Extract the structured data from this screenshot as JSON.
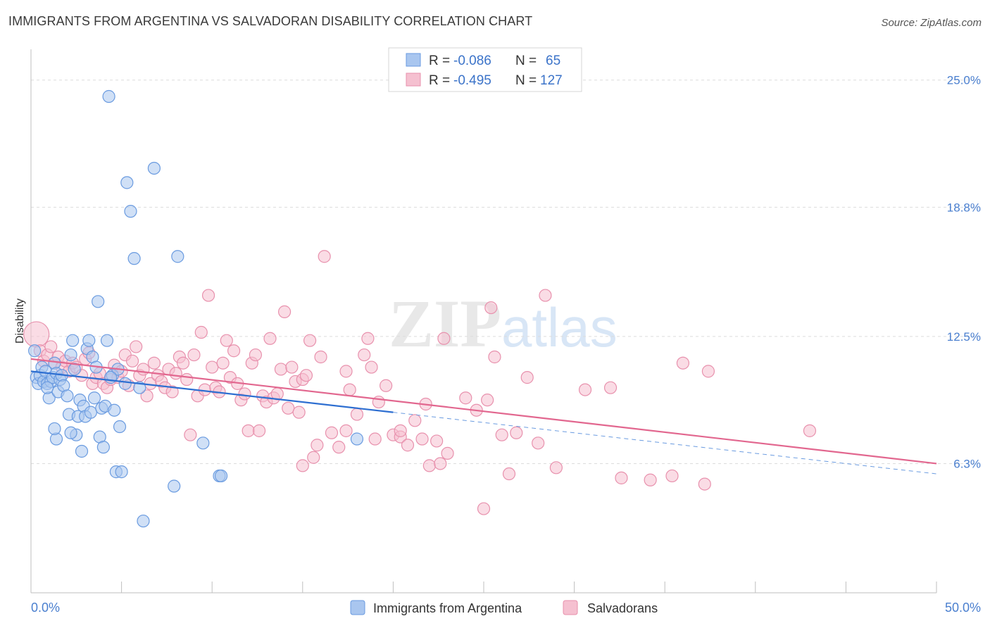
{
  "title": "IMMIGRANTS FROM ARGENTINA VS SALVADORAN DISABILITY CORRELATION CHART",
  "source": "Source: ZipAtlas.com",
  "watermark": {
    "zip": "ZIP",
    "atlas": "atlas"
  },
  "colors": {
    "blue_fill": "#a9c6ef",
    "blue_stroke": "#6a9be0",
    "blue_line": "#2e6fd1",
    "pink_fill": "#f5c0d0",
    "pink_stroke": "#e891ad",
    "pink_line": "#e2678f",
    "grid": "#dcdcdc",
    "axis_text": "#4a7fcf"
  },
  "legend_top": [
    {
      "r_label": "R =",
      "r_value": "-0.086",
      "n_label": "N =",
      "n_value": "65"
    },
    {
      "r_label": "R =",
      "r_value": "-0.495",
      "n_label": "N =",
      "n_value": "127"
    }
  ],
  "legend_bottom": [
    "Immigrants from Argentina",
    "Salvadorans"
  ],
  "chart_data": {
    "type": "scatter",
    "title": "IMMIGRANTS FROM ARGENTINA VS SALVADORAN DISABILITY CORRELATION CHART",
    "xlabel": "",
    "ylabel": "Disability",
    "xlim": [
      0,
      50
    ],
    "ylim": [
      0,
      26.5
    ],
    "x_tick_labels": [
      "0.0%",
      "50.0%"
    ],
    "y_ticks": [
      6.3,
      12.5,
      18.8,
      25.0
    ],
    "y_tick_labels": [
      "6.3%",
      "12.5%",
      "18.8%",
      "25.0%"
    ],
    "grid": true,
    "legend_position": "top-center",
    "series": [
      {
        "name": "Immigrants from Argentina",
        "color": "#a9c6ef",
        "R": -0.086,
        "N": 65,
        "trend": {
          "x0": 0,
          "y0": 10.8,
          "x1": 20,
          "y1": 8.8,
          "dashed_to_x": 50,
          "dashed_to_y": 5.8
        },
        "points": [
          [
            0.2,
            11.8
          ],
          [
            0.3,
            10.5
          ],
          [
            0.4,
            10.2
          ],
          [
            0.5,
            10.6
          ],
          [
            0.6,
            11.0
          ],
          [
            0.7,
            10.3
          ],
          [
            0.8,
            10.8
          ],
          [
            0.9,
            10.2
          ],
          [
            1.0,
            9.5
          ],
          [
            1.1,
            10.3
          ],
          [
            1.2,
            10.5
          ],
          [
            1.3,
            11.2
          ],
          [
            1.4,
            10.7
          ],
          [
            1.5,
            9.8
          ],
          [
            1.6,
            10.4
          ],
          [
            1.7,
            10.6
          ],
          [
            1.8,
            10.1
          ],
          [
            2.0,
            9.6
          ],
          [
            2.1,
            8.7
          ],
          [
            2.2,
            11.6
          ],
          [
            2.3,
            12.3
          ],
          [
            2.4,
            10.9
          ],
          [
            2.5,
            7.7
          ],
          [
            2.6,
            8.6
          ],
          [
            2.7,
            9.4
          ],
          [
            2.8,
            6.9
          ],
          [
            2.9,
            9.1
          ],
          [
            3.0,
            8.6
          ],
          [
            3.1,
            11.9
          ],
          [
            3.2,
            12.3
          ],
          [
            3.3,
            8.8
          ],
          [
            3.4,
            11.5
          ],
          [
            3.5,
            9.5
          ],
          [
            3.6,
            11.0
          ],
          [
            3.7,
            14.2
          ],
          [
            3.8,
            7.6
          ],
          [
            3.9,
            9.0
          ],
          [
            4.0,
            7.1
          ],
          [
            4.1,
            9.1
          ],
          [
            4.2,
            12.3
          ],
          [
            4.3,
            24.2
          ],
          [
            4.5,
            10.6
          ],
          [
            4.6,
            8.9
          ],
          [
            4.7,
            5.9
          ],
          [
            4.8,
            10.9
          ],
          [
            4.9,
            8.1
          ],
          [
            5.0,
            5.9
          ],
          [
            5.2,
            10.2
          ],
          [
            5.3,
            20.0
          ],
          [
            5.5,
            18.6
          ],
          [
            5.7,
            16.3
          ],
          [
            6.0,
            10.0
          ],
          [
            6.2,
            3.5
          ],
          [
            6.8,
            20.7
          ],
          [
            7.9,
            5.2
          ],
          [
            8.1,
            16.4
          ],
          [
            9.5,
            7.3
          ],
          [
            10.4,
            5.7
          ],
          [
            10.5,
            5.7
          ],
          [
            18.0,
            7.5
          ],
          [
            1.4,
            7.5
          ],
          [
            2.2,
            7.8
          ],
          [
            1.3,
            8.0
          ],
          [
            4.4,
            10.5
          ],
          [
            0.9,
            10.0
          ]
        ]
      },
      {
        "name": "Salvadorans",
        "color": "#f5c0d0",
        "R": -0.495,
        "N": 127,
        "trend": {
          "x0": 0,
          "y0": 11.4,
          "x1": 50,
          "y1": 6.3
        },
        "points": [
          [
            0.3,
            12.6
          ],
          [
            0.5,
            11.8
          ],
          [
            0.7,
            11.3
          ],
          [
            0.9,
            11.6
          ],
          [
            1.1,
            12.0
          ],
          [
            1.3,
            11.2
          ],
          [
            1.5,
            11.5
          ],
          [
            1.7,
            11.0
          ],
          [
            1.9,
            11.3
          ],
          [
            2.1,
            10.8
          ],
          [
            2.3,
            11.2
          ],
          [
            2.5,
            11.0
          ],
          [
            2.8,
            10.6
          ],
          [
            3.0,
            11.4
          ],
          [
            3.2,
            11.7
          ],
          [
            3.4,
            10.2
          ],
          [
            3.6,
            10.5
          ],
          [
            3.8,
            10.7
          ],
          [
            4.0,
            10.2
          ],
          [
            4.2,
            10.0
          ],
          [
            4.4,
            10.4
          ],
          [
            4.6,
            11.1
          ],
          [
            4.8,
            10.5
          ],
          [
            5.0,
            10.8
          ],
          [
            5.2,
            11.6
          ],
          [
            5.4,
            10.1
          ],
          [
            5.6,
            11.3
          ],
          [
            5.8,
            12.0
          ],
          [
            6.0,
            10.6
          ],
          [
            6.2,
            10.9
          ],
          [
            6.4,
            9.6
          ],
          [
            6.6,
            10.2
          ],
          [
            6.8,
            11.2
          ],
          [
            7.0,
            10.6
          ],
          [
            7.2,
            10.3
          ],
          [
            7.4,
            10.0
          ],
          [
            7.6,
            10.9
          ],
          [
            7.8,
            9.8
          ],
          [
            8.0,
            10.7
          ],
          [
            8.2,
            11.5
          ],
          [
            8.4,
            11.2
          ],
          [
            8.6,
            10.4
          ],
          [
            8.8,
            7.7
          ],
          [
            9.0,
            11.6
          ],
          [
            9.2,
            9.6
          ],
          [
            9.4,
            12.7
          ],
          [
            9.6,
            9.9
          ],
          [
            9.8,
            14.5
          ],
          [
            10.0,
            11.0
          ],
          [
            10.2,
            10.0
          ],
          [
            10.4,
            9.8
          ],
          [
            10.6,
            11.2
          ],
          [
            10.8,
            12.3
          ],
          [
            11.0,
            10.5
          ],
          [
            11.2,
            11.8
          ],
          [
            11.4,
            10.2
          ],
          [
            11.6,
            9.4
          ],
          [
            11.8,
            9.7
          ],
          [
            12.0,
            7.9
          ],
          [
            12.2,
            11.2
          ],
          [
            12.4,
            11.6
          ],
          [
            12.6,
            7.9
          ],
          [
            12.8,
            9.6
          ],
          [
            13.0,
            9.3
          ],
          [
            13.2,
            12.4
          ],
          [
            13.4,
            9.5
          ],
          [
            13.6,
            9.7
          ],
          [
            13.8,
            10.9
          ],
          [
            14.0,
            13.7
          ],
          [
            14.2,
            9.0
          ],
          [
            14.4,
            11.0
          ],
          [
            14.6,
            10.3
          ],
          [
            14.8,
            8.8
          ],
          [
            15.0,
            10.4
          ],
          [
            15.2,
            10.6
          ],
          [
            15.4,
            12.3
          ],
          [
            15.6,
            6.6
          ],
          [
            15.8,
            7.2
          ],
          [
            16.0,
            11.5
          ],
          [
            16.2,
            16.4
          ],
          [
            16.6,
            7.8
          ],
          [
            17.0,
            7.1
          ],
          [
            17.4,
            10.8
          ],
          [
            17.6,
            9.9
          ],
          [
            18.0,
            8.7
          ],
          [
            18.4,
            11.6
          ],
          [
            18.6,
            12.4
          ],
          [
            18.8,
            11.0
          ],
          [
            19.0,
            7.5
          ],
          [
            19.2,
            9.3
          ],
          [
            19.6,
            10.1
          ],
          [
            20.0,
            7.7
          ],
          [
            20.4,
            7.6
          ],
          [
            20.8,
            7.2
          ],
          [
            21.2,
            8.4
          ],
          [
            21.6,
            7.5
          ],
          [
            21.8,
            9.2
          ],
          [
            22.0,
            6.2
          ],
          [
            22.4,
            7.4
          ],
          [
            22.6,
            6.3
          ],
          [
            22.8,
            12.4
          ],
          [
            23.0,
            6.8
          ],
          [
            24.0,
            9.5
          ],
          [
            24.6,
            8.9
          ],
          [
            25.0,
            4.1
          ],
          [
            25.2,
            9.4
          ],
          [
            25.4,
            13.9
          ],
          [
            25.6,
            11.5
          ],
          [
            26.0,
            7.7
          ],
          [
            26.4,
            5.8
          ],
          [
            26.8,
            7.8
          ],
          [
            27.4,
            10.5
          ],
          [
            28.0,
            7.3
          ],
          [
            28.4,
            14.5
          ],
          [
            29.0,
            6.1
          ],
          [
            30.6,
            9.9
          ],
          [
            32.0,
            10.0
          ],
          [
            32.6,
            5.6
          ],
          [
            34.2,
            5.5
          ],
          [
            35.4,
            5.7
          ],
          [
            36.0,
            11.2
          ],
          [
            37.2,
            5.3
          ],
          [
            37.4,
            10.8
          ],
          [
            43.0,
            7.9
          ],
          [
            20.4,
            7.9
          ],
          [
            15.0,
            6.2
          ],
          [
            17.4,
            7.9
          ]
        ]
      }
    ]
  }
}
